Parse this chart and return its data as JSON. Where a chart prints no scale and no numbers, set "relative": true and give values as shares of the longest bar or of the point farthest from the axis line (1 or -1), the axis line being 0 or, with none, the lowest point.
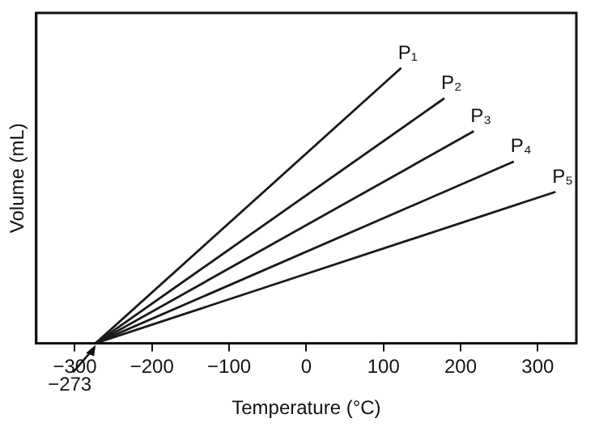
{
  "chart_data": {
    "type": "line",
    "xlabel": "Temperature (°C)",
    "ylabel": "Volume (mL)",
    "relative": true,
    "xlim": [
      -350,
      350
    ],
    "xticks": [
      -300,
      -200,
      -100,
      0,
      100,
      200,
      300
    ],
    "tick_labels": "x",
    "grid": false,
    "legend": false,
    "marker": "none",
    "line_style": "solid",
    "series": [
      {
        "name": "P₁",
        "color": "#1a1a1a",
        "x": [
          -273,
          123
        ],
        "values": [
          0,
          1
        ]
      },
      {
        "name": "P₂",
        "color": "#1a1a1a",
        "x": [
          -273,
          179
        ],
        "values": [
          0,
          0.89
        ]
      },
      {
        "name": "P₃",
        "color": "#1a1a1a",
        "x": [
          -273,
          217
        ],
        "values": [
          0,
          0.77
        ]
      },
      {
        "name": "P₄",
        "color": "#1a1a1a",
        "x": [
          -273,
          269
        ],
        "values": [
          0,
          0.66
        ]
      },
      {
        "name": "P₅",
        "color": "#1a1a1a",
        "x": [
          -273,
          323
        ],
        "values": [
          0,
          0.55
        ]
      }
    ],
    "annotations": [
      {
        "text": "−273",
        "x": -273,
        "y": 0
      }
    ]
  }
}
